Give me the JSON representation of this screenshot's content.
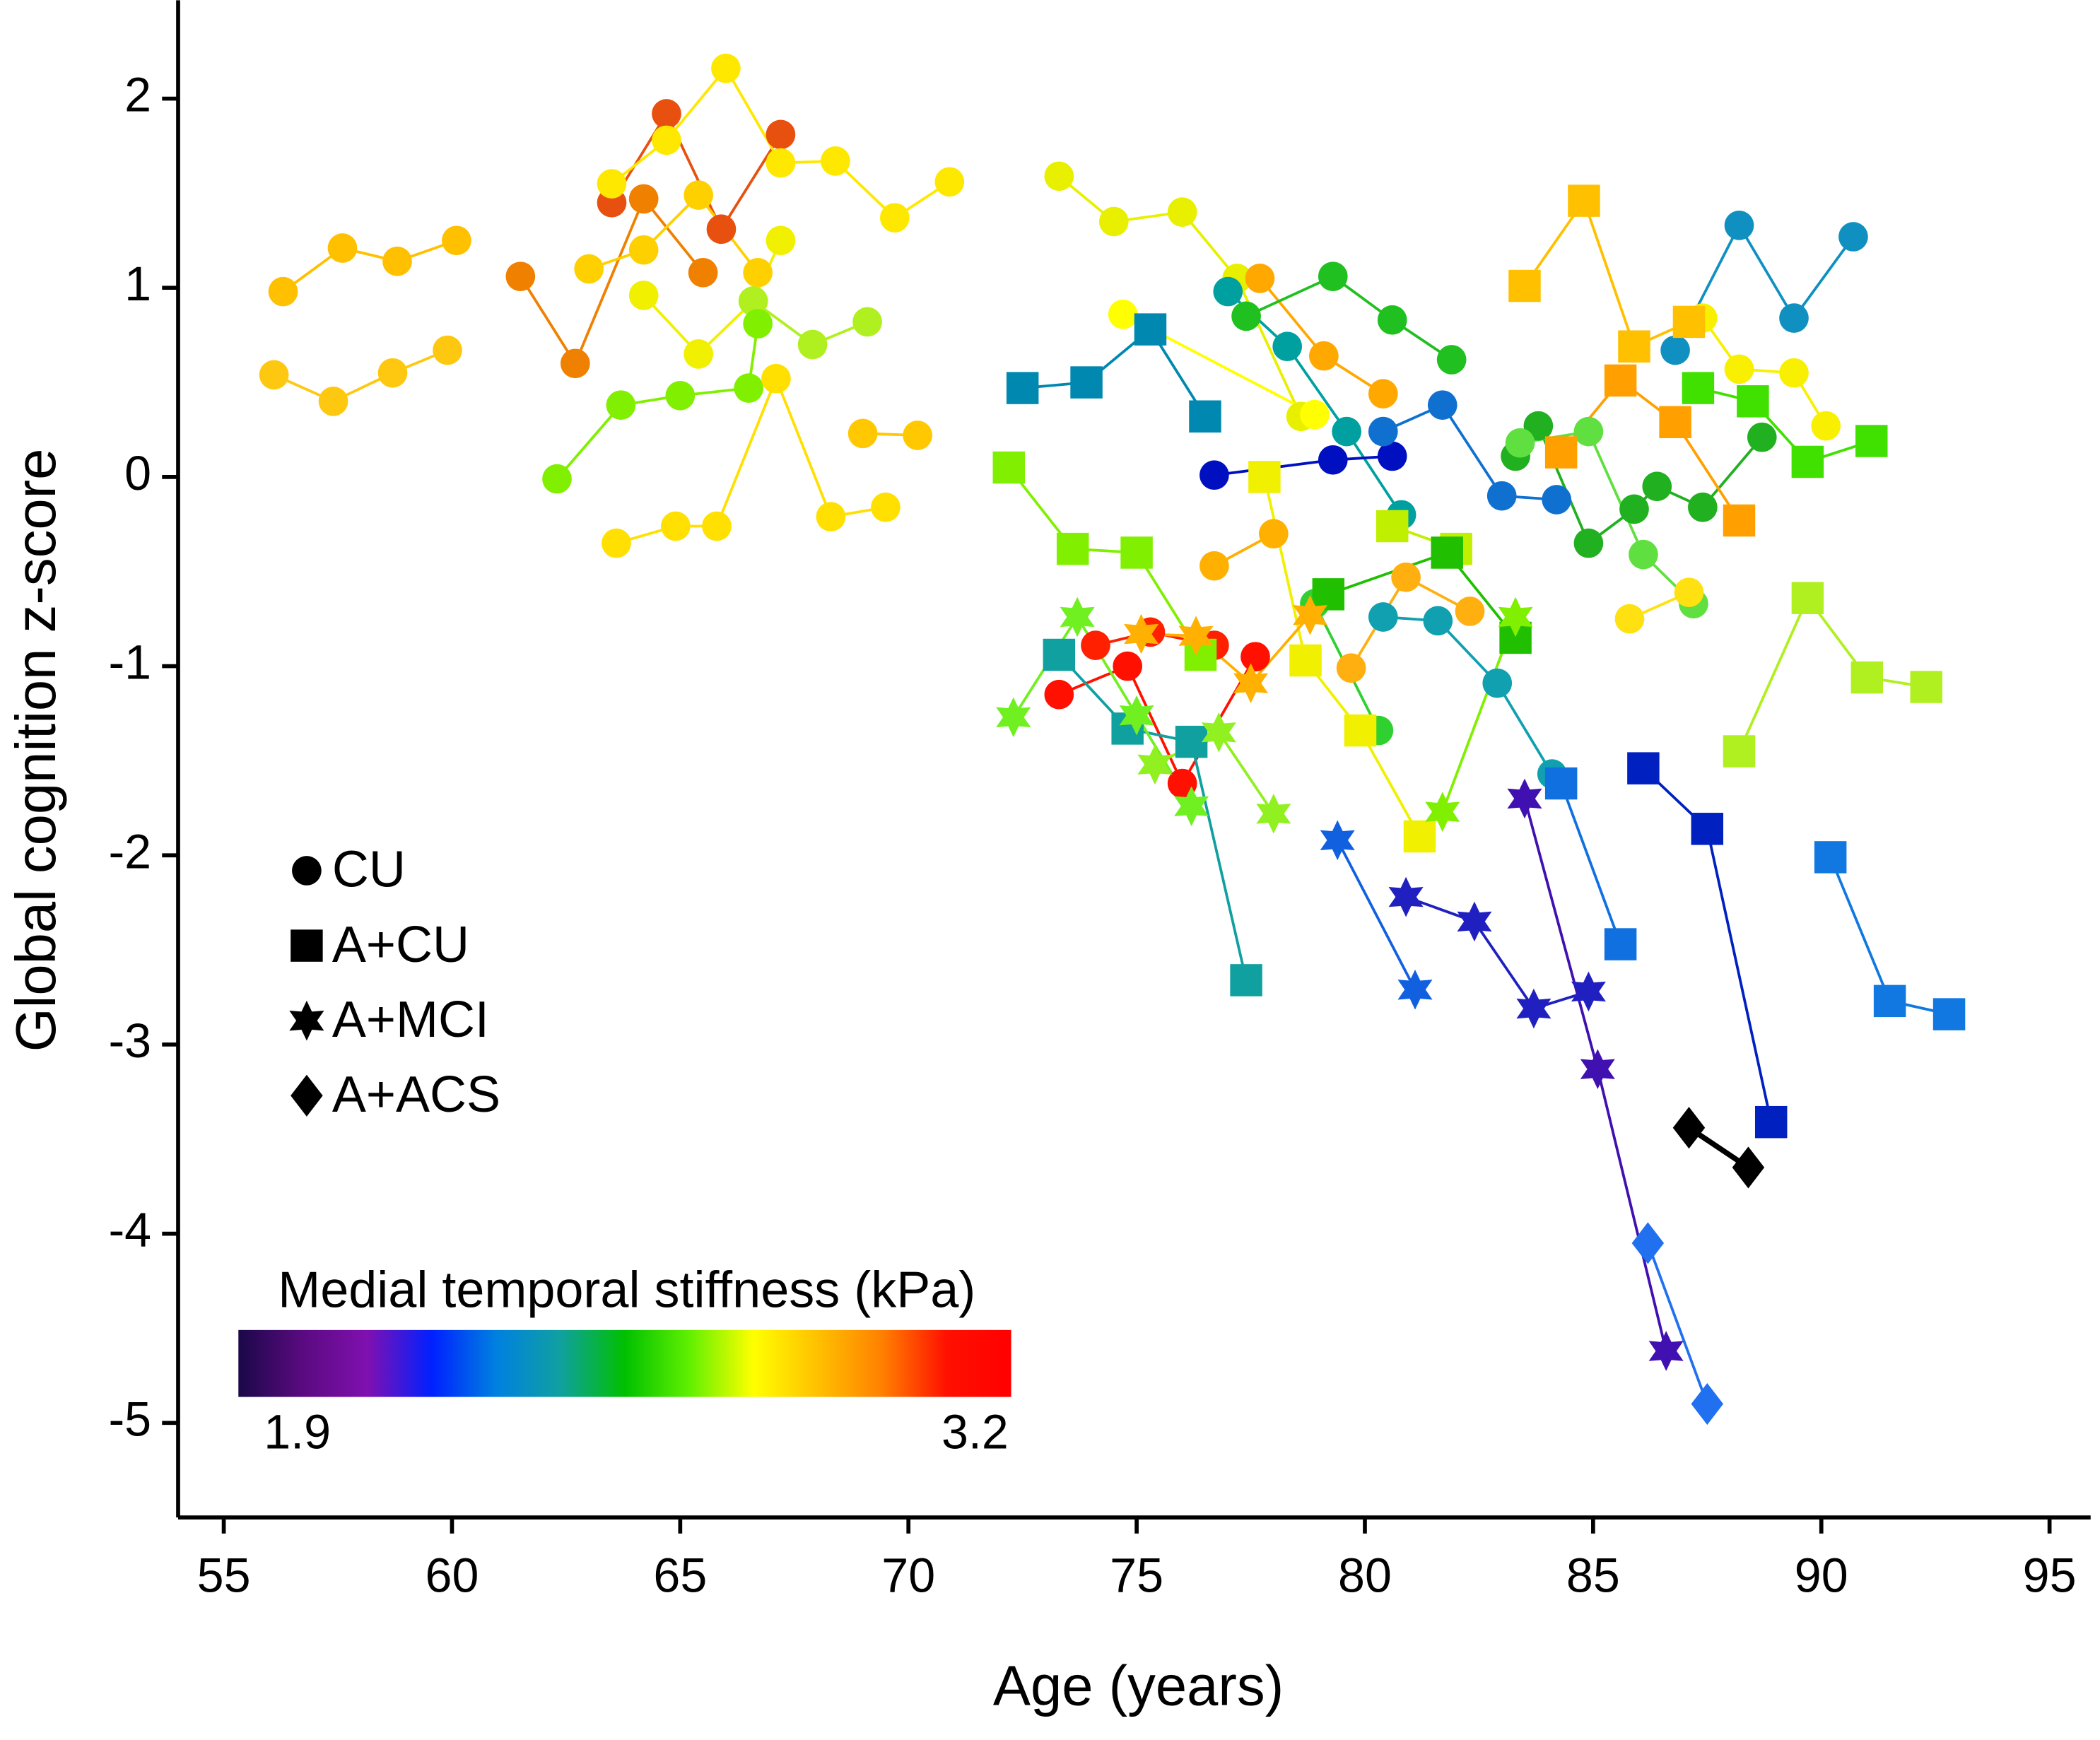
{
  "chart_data": {
    "type": "line",
    "x_label": "Age (years)",
    "y_label": "Global cognition z-score",
    "xlim": [
      54.0,
      95.9
    ],
    "ylim": [
      -5.5,
      2.52
    ],
    "xticks": [
      55,
      60,
      65,
      70,
      75,
      80,
      85,
      90,
      95
    ],
    "yticks": [
      -5,
      -4,
      -3,
      -2,
      -1,
      0,
      1,
      2
    ],
    "legend": [
      {
        "label": "CU",
        "marker": "circle"
      },
      {
        "label": "A+CU",
        "marker": "square"
      },
      {
        "label": "A+MCI",
        "marker": "star"
      },
      {
        "label": "A+ACS",
        "marker": "diamond"
      }
    ],
    "colorbar": {
      "label": "Medial temporal stiffness (kPa)",
      "min": 1.9,
      "max": 3.2,
      "min_label": "1.9",
      "max_label": "3.2",
      "colors": [
        "#1a0848",
        "#5a0a80",
        "#8010b0",
        "#0020ff",
        "#0080e0",
        "#10a0a0",
        "#00c000",
        "#60f000",
        "#ffff00",
        "#ffc000",
        "#ff8000",
        "#ff1000",
        "#ff0000"
      ]
    },
    "series": [
      {
        "marker": "circle",
        "color": "#ffc000",
        "x": [
          56.3,
          57.6,
          58.8,
          60.1
        ],
        "values": [
          0.98,
          1.21,
          1.14,
          1.25
        ]
      },
      {
        "marker": "circle",
        "color": "#ffc810",
        "x": [
          56.1,
          57.4,
          58.7,
          59.9
        ],
        "values": [
          0.54,
          0.4,
          0.55,
          0.67
        ]
      },
      {
        "marker": "circle",
        "color": "#f08000",
        "x": [
          61.5,
          62.7,
          64.2,
          65.5
        ],
        "values": [
          1.06,
          0.6,
          1.47,
          1.08
        ]
      },
      {
        "marker": "circle",
        "color": "#e85010",
        "x": [
          63.5,
          64.7,
          65.9,
          67.2
        ],
        "values": [
          1.45,
          1.92,
          1.31,
          1.81
        ]
      },
      {
        "marker": "circle",
        "color": "#ffe800",
        "x": [
          63.5,
          64.7,
          66.0,
          67.2,
          68.4,
          69.7,
          70.9
        ],
        "values": [
          1.55,
          1.78,
          2.16,
          1.66,
          1.67,
          1.37,
          1.56
        ]
      },
      {
        "marker": "circle",
        "color": "#ffd000",
        "x": [
          63.0,
          64.2,
          65.4,
          66.7
        ],
        "values": [
          1.1,
          1.2,
          1.49,
          1.08
        ]
      },
      {
        "marker": "circle",
        "color": "#f0f000",
        "x": [
          64.2,
          65.4,
          66.6,
          67.2
        ],
        "values": [
          0.96,
          0.65,
          0.93,
          1.25
        ]
      },
      {
        "marker": "circle",
        "color": "#b0f020",
        "x": [
          66.6,
          67.9,
          69.1
        ],
        "values": [
          0.93,
          0.7,
          0.82
        ]
      },
      {
        "marker": "circle",
        "color": "#80f000",
        "x": [
          62.3,
          63.7,
          65.0,
          66.5,
          66.7
        ],
        "values": [
          -0.01,
          0.38,
          0.43,
          0.47,
          0.81
        ]
      },
      {
        "marker": "circle",
        "color": "#ffe000",
        "x": [
          63.6,
          64.9,
          65.8,
          67.1,
          68.3,
          69.5
        ],
        "values": [
          -0.35,
          -0.26,
          -0.26,
          0.52,
          -0.21,
          -0.16
        ]
      },
      {
        "marker": "circle",
        "color": "#ffc800",
        "x": [
          69.0,
          70.2
        ],
        "values": [
          0.23,
          0.22
        ]
      },
      {
        "marker": "circle",
        "color": "#e8f000",
        "x": [
          73.3,
          74.5,
          76.0,
          77.2,
          78.6
        ],
        "values": [
          1.59,
          1.35,
          1.4,
          1.05,
          0.32
        ]
      },
      {
        "marker": "circle",
        "color": "#ffff00",
        "x": [
          74.7,
          78.9
        ],
        "values": [
          0.86,
          0.33
        ]
      },
      {
        "marker": "circle",
        "color": "#ffa800",
        "x": [
          77.7,
          79.1,
          80.4
        ],
        "values": [
          1.05,
          0.64,
          0.44
        ]
      },
      {
        "marker": "circle",
        "color": "#00a0a0",
        "x": [
          77.0,
          78.3,
          79.6,
          80.8
        ],
        "values": [
          0.98,
          0.69,
          0.24,
          -0.2
        ]
      },
      {
        "marker": "circle",
        "color": "#20c020",
        "x": [
          77.4,
          79.3,
          80.6,
          81.9
        ],
        "values": [
          0.85,
          1.06,
          0.83,
          0.62
        ]
      },
      {
        "marker": "circle",
        "color": "#0010c0",
        "x": [
          76.7,
          79.3,
          80.6
        ],
        "values": [
          0.01,
          0.09,
          0.11
        ]
      },
      {
        "marker": "circle",
        "color": "#1070d0",
        "x": [
          80.4,
          81.7,
          83.0,
          84.2
        ],
        "values": [
          0.24,
          0.38,
          -0.1,
          -0.12
        ]
      },
      {
        "marker": "circle",
        "color": "#1090c0",
        "x": [
          86.8,
          88.2,
          89.4,
          90.7
        ],
        "values": [
          0.67,
          1.33,
          0.84,
          1.27
        ]
      },
      {
        "marker": "circle",
        "color": "#10a0b0",
        "x": [
          80.4,
          81.6,
          82.9,
          84.1
        ],
        "values": [
          -0.74,
          -0.76,
          -1.09,
          -1.57
        ]
      },
      {
        "marker": "circle",
        "color": "#ffb000",
        "x": [
          76.7,
          78.0
        ],
        "values": [
          -0.47,
          -0.3
        ]
      },
      {
        "marker": "circle",
        "color": "#ffb010",
        "x": [
          79.7,
          80.9,
          82.3
        ],
        "values": [
          -1.01,
          -0.53,
          -0.71
        ]
      },
      {
        "marker": "circle",
        "color": "#30d030",
        "x": [
          78.9,
          80.3
        ],
        "values": [
          -0.67,
          -1.34
        ]
      },
      {
        "marker": "circle",
        "color": "#20b020",
        "x": [
          83.3,
          83.8,
          84.9,
          85.9,
          86.4,
          87.4,
          88.7
        ],
        "values": [
          0.11,
          0.27,
          -0.35,
          -0.17,
          -0.05,
          -0.16,
          0.21
        ]
      },
      {
        "marker": "circle",
        "color": "#60e040",
        "x": [
          83.4,
          84.9,
          86.1,
          87.2
        ],
        "values": [
          0.18,
          0.24,
          -0.41,
          -0.67
        ]
      },
      {
        "marker": "circle",
        "color": "#ffe010",
        "x": [
          85.8,
          87.1
        ],
        "values": [
          -0.75,
          -0.61
        ]
      },
      {
        "marker": "circle",
        "color": "#f8f000",
        "x": [
          87.4,
          88.2,
          89.4,
          90.1
        ],
        "values": [
          0.84,
          0.57,
          0.55,
          0.27
        ]
      },
      {
        "marker": "circle",
        "color": "#ff1000",
        "x": [
          73.3,
          74.8,
          76.0,
          77.6
        ],
        "values": [
          -1.15,
          -1.0,
          -1.62,
          -0.95
        ]
      },
      {
        "marker": "circle",
        "color": "#ff2000",
        "x": [
          74.1,
          75.3,
          76.7
        ],
        "values": [
          -0.89,
          -0.82,
          -0.89
        ]
      },
      {
        "marker": "square",
        "color": "#0088b0",
        "x": [
          72.5,
          73.9,
          75.3,
          76.5
        ],
        "values": [
          0.47,
          0.5,
          0.78,
          0.32
        ]
      },
      {
        "marker": "square",
        "color": "#10a0a0",
        "x": [
          73.3,
          74.8,
          76.2,
          77.4
        ],
        "values": [
          -0.94,
          -1.33,
          -1.4,
          -2.66
        ]
      },
      {
        "marker": "square",
        "color": "#80f000",
        "x": [
          72.2,
          73.6,
          75.0,
          76.4
        ],
        "values": [
          0.05,
          -0.38,
          -0.4,
          -0.94
        ]
      },
      {
        "marker": "square",
        "color": "#f0f000",
        "x": [
          77.8,
          78.7,
          79.9,
          81.2
        ],
        "values": [
          0.0,
          -0.97,
          -1.34,
          -1.9
        ]
      },
      {
        "marker": "square",
        "color": "#c0f000",
        "x": [
          80.6,
          82.0
        ],
        "values": [
          -0.26,
          -0.38
        ]
      },
      {
        "marker": "square",
        "color": "#20c000",
        "x": [
          79.2,
          81.8,
          83.3
        ],
        "values": [
          -0.62,
          -0.4,
          -0.85
        ]
      },
      {
        "marker": "square",
        "color": "#ffc000",
        "x": [
          83.5,
          84.8,
          85.9,
          87.1
        ],
        "values": [
          1.01,
          1.46,
          0.69,
          0.82
        ]
      },
      {
        "marker": "square",
        "color": "#ffa000",
        "x": [
          84.3,
          85.6,
          86.8,
          88.2
        ],
        "values": [
          0.13,
          0.51,
          0.29,
          -0.23
        ]
      },
      {
        "marker": "square",
        "color": "#40e000",
        "x": [
          87.3,
          88.5,
          89.7,
          91.1
        ],
        "values": [
          0.47,
          0.4,
          0.08,
          0.19
        ]
      },
      {
        "marker": "square",
        "color": "#b0f020",
        "x": [
          88.2,
          89.7,
          91.0,
          92.3
        ],
        "values": [
          -1.45,
          -0.64,
          -1.06,
          -1.11
        ]
      },
      {
        "marker": "square",
        "color": "#1070e0",
        "x": [
          84.3,
          85.6
        ],
        "values": [
          -1.62,
          -2.47
        ]
      },
      {
        "marker": "square",
        "color": "#0020c0",
        "x": [
          86.1,
          87.5,
          88.9
        ],
        "values": [
          -1.54,
          -1.86,
          -3.41
        ]
      },
      {
        "marker": "square",
        "color": "#1078e0",
        "x": [
          90.2,
          91.5,
          92.8
        ],
        "values": [
          -2.01,
          -2.77,
          -2.84
        ]
      },
      {
        "marker": "star",
        "color": "#70f020",
        "x": [
          72.3,
          73.7,
          75.0,
          76.2
        ],
        "values": [
          -1.27,
          -0.74,
          -1.26,
          -1.74
        ]
      },
      {
        "marker": "star",
        "color": "#90f020",
        "x": [
          75.4,
          76.8,
          78.0
        ],
        "values": [
          -1.52,
          -1.35,
          -1.78
        ]
      },
      {
        "marker": "star",
        "color": "#ffb000",
        "x": [
          75.1,
          76.3,
          77.5,
          78.8
        ],
        "values": [
          -0.83,
          -0.84,
          -1.09,
          -0.73
        ]
      },
      {
        "marker": "star",
        "color": "#80f000",
        "x": [
          81.7,
          83.3
        ],
        "values": [
          -1.77,
          -0.74
        ]
      },
      {
        "marker": "star",
        "color": "#1060e0",
        "x": [
          79.4,
          81.1
        ],
        "values": [
          -1.92,
          -2.71
        ]
      },
      {
        "marker": "star",
        "color": "#2020c0",
        "x": [
          80.9,
          82.4,
          83.7,
          84.9
        ],
        "values": [
          -2.22,
          -2.35,
          -2.81,
          -2.72
        ]
      },
      {
        "marker": "star",
        "color": "#4010b0",
        "x": [
          83.5,
          85.1,
          86.6
        ],
        "values": [
          -1.7,
          -3.13,
          -4.62
        ]
      },
      {
        "marker": "diamond",
        "color": "#000000",
        "x": [
          87.1,
          88.4
        ],
        "values": [
          -3.44,
          -3.65
        ]
      },
      {
        "marker": "diamond",
        "color": "#2070f0",
        "x": [
          86.2,
          87.5
        ],
        "values": [
          -4.05,
          -4.9
        ]
      }
    ]
  }
}
